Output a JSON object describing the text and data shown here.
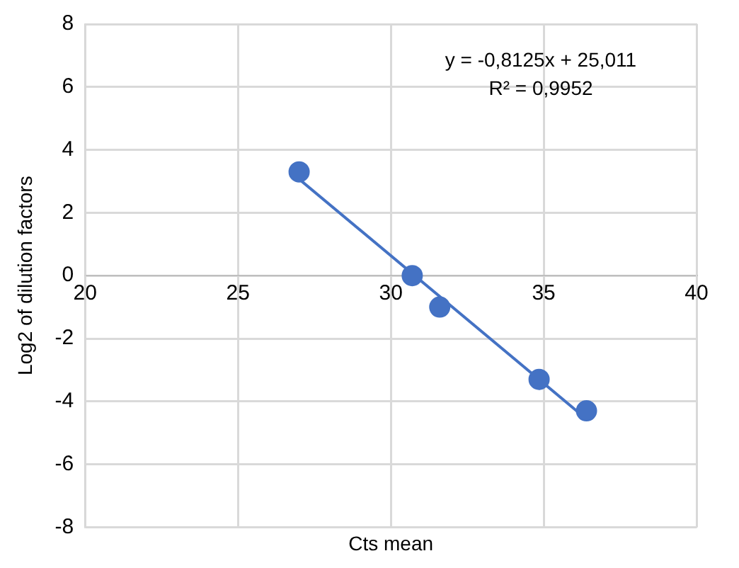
{
  "chart_data": {
    "type": "scatter",
    "xlabel": "Cts mean",
    "ylabel": "Log2 of dilution factors",
    "x": [
      27.0,
      30.7,
      31.6,
      34.85,
      36.4
    ],
    "series": [
      {
        "type": "scatter",
        "color": "#4472c4",
        "values": [
          3.3,
          0,
          -1,
          -3.3,
          -4.3
        ],
        "marker": "circle"
      },
      {
        "type": "line",
        "color": "#4472c4",
        "x": [
          27.0,
          36.4
        ],
        "values": [
          3.07,
          -4.56
        ],
        "marker": "none"
      }
    ],
    "xlim": [
      20,
      40
    ],
    "xticks": [
      20,
      25,
      30,
      35,
      40
    ],
    "ylim": [
      -8,
      8
    ],
    "yticks": [
      -8,
      -6,
      -4,
      -2,
      0,
      2,
      4,
      6,
      8
    ],
    "grid": true,
    "legend": false,
    "annotations": [
      "y = -0,8125x + 25,011",
      "R² = 0,9952"
    ]
  }
}
